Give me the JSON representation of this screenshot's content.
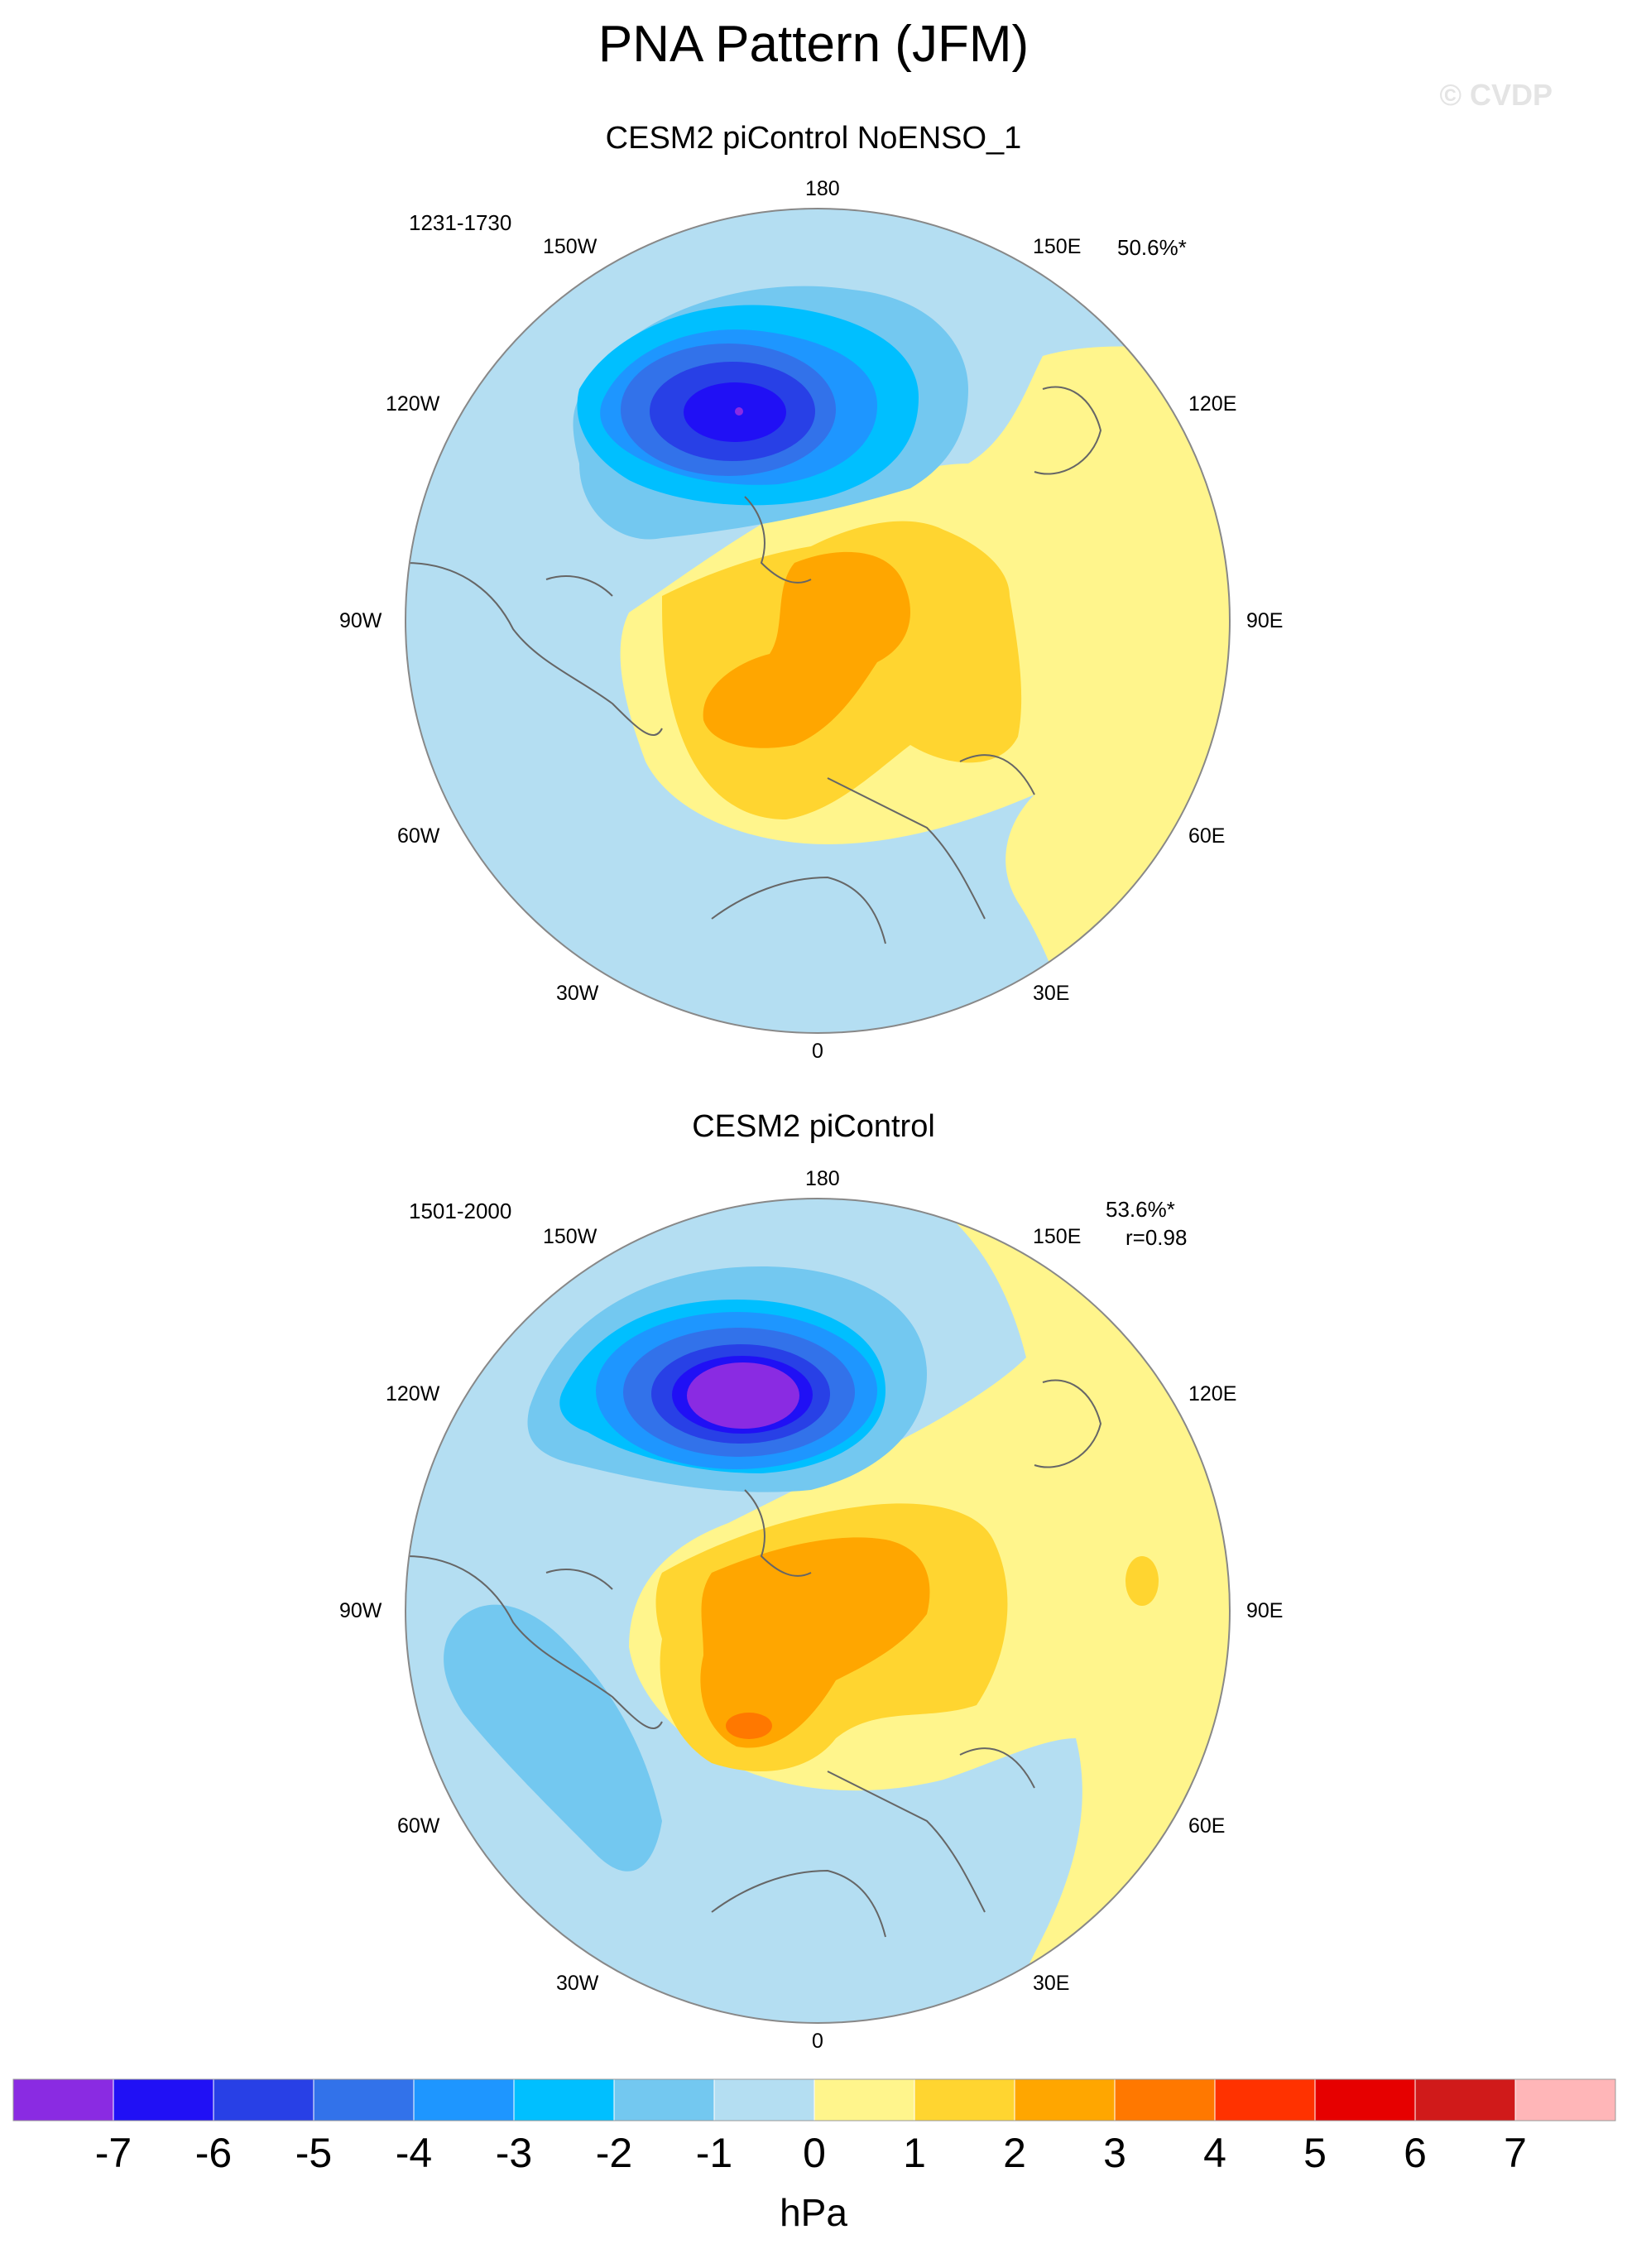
{
  "title": "PNA Pattern (JFM)",
  "watermark": "© CVDP",
  "panels": [
    {
      "title": "CESM2 piControl NoENSO_1",
      "years": "1231-1730",
      "variance": "50.6%*",
      "corr": "",
      "lon_labels": [
        "180",
        "150E",
        "120E",
        "90E",
        "60E",
        "30E",
        "0",
        "30W",
        "60W",
        "90W",
        "120W",
        "150W"
      ]
    },
    {
      "title": "CESM2 piControl",
      "years": "1501-2000",
      "variance": "53.6%*",
      "corr": "r=0.98",
      "lon_labels": [
        "180",
        "150E",
        "120E",
        "90E",
        "60E",
        "30E",
        "0",
        "30W",
        "60W",
        "90W",
        "120W",
        "150W"
      ]
    }
  ],
  "colorbar": {
    "units": "hPa",
    "labels": [
      "-7",
      "-6",
      "-5",
      "-4",
      "-3",
      "-2",
      "-1",
      "0",
      "1",
      "2",
      "3",
      "4",
      "5",
      "6",
      "7"
    ],
    "colors": [
      "#8a2be2",
      "#2010f5",
      "#2840e6",
      "#3272ea",
      "#1e96ff",
      "#00bfff",
      "#73c8f0",
      "#b4def2",
      "#fff58c",
      "#ffd530",
      "#ffa600",
      "#ff7800",
      "#ff3200",
      "#e60000",
      "#d01a1a",
      "#ffb6b8"
    ]
  }
}
